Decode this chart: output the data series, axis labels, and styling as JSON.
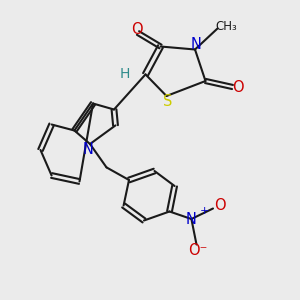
{
  "background_color": "#ebebeb",
  "C": "#1a1a1a",
  "H": "#2e8b8b",
  "N": "#0000cc",
  "O": "#cc0000",
  "S": "#cccc00",
  "lw": 1.5,
  "fs": 10.5
}
